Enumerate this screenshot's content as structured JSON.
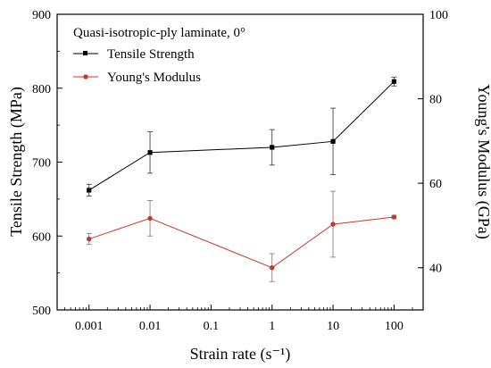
{
  "chart_data": {
    "type": "line",
    "title": "",
    "legend_title": "Quasi-isotropic-ply laminate, 0°",
    "legend_position": "top-left",
    "xlabel": "Strain rate (s⁻¹)",
    "xscale": "log",
    "xlim": [
      0.0003,
      300
    ],
    "x_ticks": [
      0.001,
      0.01,
      0.1,
      1,
      10,
      100
    ],
    "x_tick_labels": [
      "0.001",
      "0.01",
      "0.1",
      "1",
      "10",
      "100"
    ],
    "ylabel_left": "Tensile Strength (MPa)",
    "ylim_left": [
      500,
      900
    ],
    "y_ticks_left": [
      "500",
      "600",
      "700",
      "800",
      "900"
    ],
    "ylabel_right": "Young's Modulus (GPa)",
    "ylim_right": [
      30,
      100
    ],
    "y_ticks_right": [
      "40",
      "60",
      "80",
      "100"
    ],
    "grid": false,
    "series": [
      {
        "name": "Tensile Strength",
        "axis": "left",
        "color": "#000000",
        "marker": "square",
        "x": [
          0.001,
          0.01,
          1,
          10,
          100
        ],
        "y": [
          662,
          713,
          720,
          728,
          809
        ],
        "err": [
          8,
          28,
          24,
          45,
          6
        ]
      },
      {
        "name": "Young's Modulus",
        "axis": "right",
        "color": "#c0392b",
        "marker": "circle",
        "x": [
          0.001,
          0.01,
          1,
          10,
          100
        ],
        "y": [
          46.8,
          51.7,
          40.0,
          50.3,
          52.0
        ],
        "err": [
          1.3,
          4.2,
          3.3,
          7.8,
          0.4
        ]
      }
    ]
  }
}
